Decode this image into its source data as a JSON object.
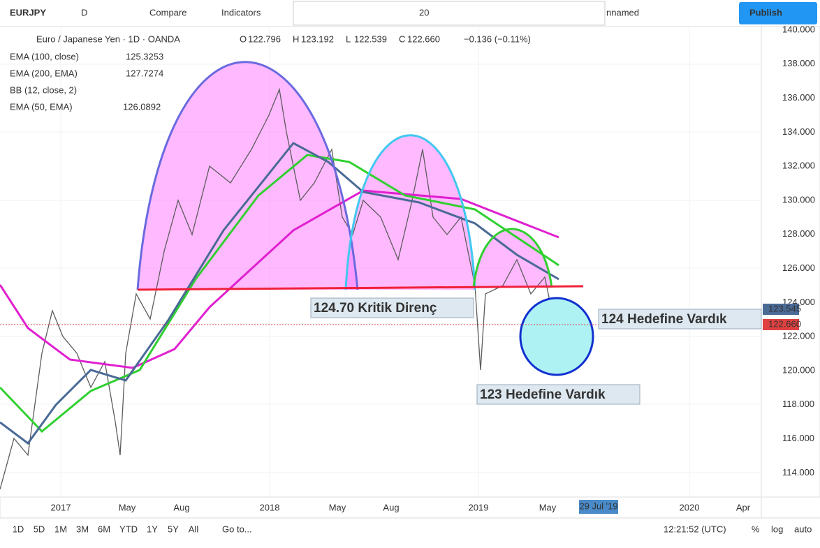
{
  "toolbar": {
    "symbol": "EURJPY",
    "interval": "D",
    "compare": "Compare",
    "indicators": "Indicators",
    "line_width": "20",
    "layout_name": "nnamed",
    "publish": "Publish"
  },
  "legend": {
    "title": "Euro / Japanese Yen · 1D · OANDA",
    "ohlc": [
      "O",
      "122.796",
      "H",
      "123.192",
      "L",
      "122.539",
      "C",
      "122.660"
    ],
    "change": "−0.136 (−0.11%)",
    "indicators": [
      {
        "name": "EMA (100, close)",
        "value": "125.3253"
      },
      {
        "name": "EMA (200, EMA)",
        "value": "127.7274"
      },
      {
        "name": "BB (12, close, 2)"
      },
      {
        "name": "EMA (50, EMA)",
        "value": "126.0892"
      }
    ]
  },
  "price_axis": {
    "ticks": [
      "140.000",
      "138.000",
      "136.000",
      "134.000",
      "132.000",
      "130.000",
      "128.000",
      "126.000",
      "124.000",
      "122.000",
      "120.000",
      "118.000",
      "116.000",
      "114.000"
    ],
    "badges": [
      "123.545",
      "122.660"
    ]
  },
  "time_axis": {
    "ticks": [
      "2017",
      "May",
      "Aug",
      "2018",
      "May",
      "Aug",
      "2019",
      "May",
      "2020",
      "Apr"
    ],
    "cursor": "29 Jul '19"
  },
  "annotations": [
    "124.70 Kritik Direnç",
    "124 Hedefine Vardık",
    "123 Hedefine Vardık"
  ],
  "bottom_bar": {
    "ranges": [
      "1D",
      "5D",
      "1M",
      "3M",
      "6M",
      "YTD",
      "1Y",
      "5Y",
      "All"
    ],
    "goto": "Go to...",
    "clock": "12:21:52 (UTC)",
    "percent": "%",
    "log": "log",
    "auto": "auto"
  }
}
